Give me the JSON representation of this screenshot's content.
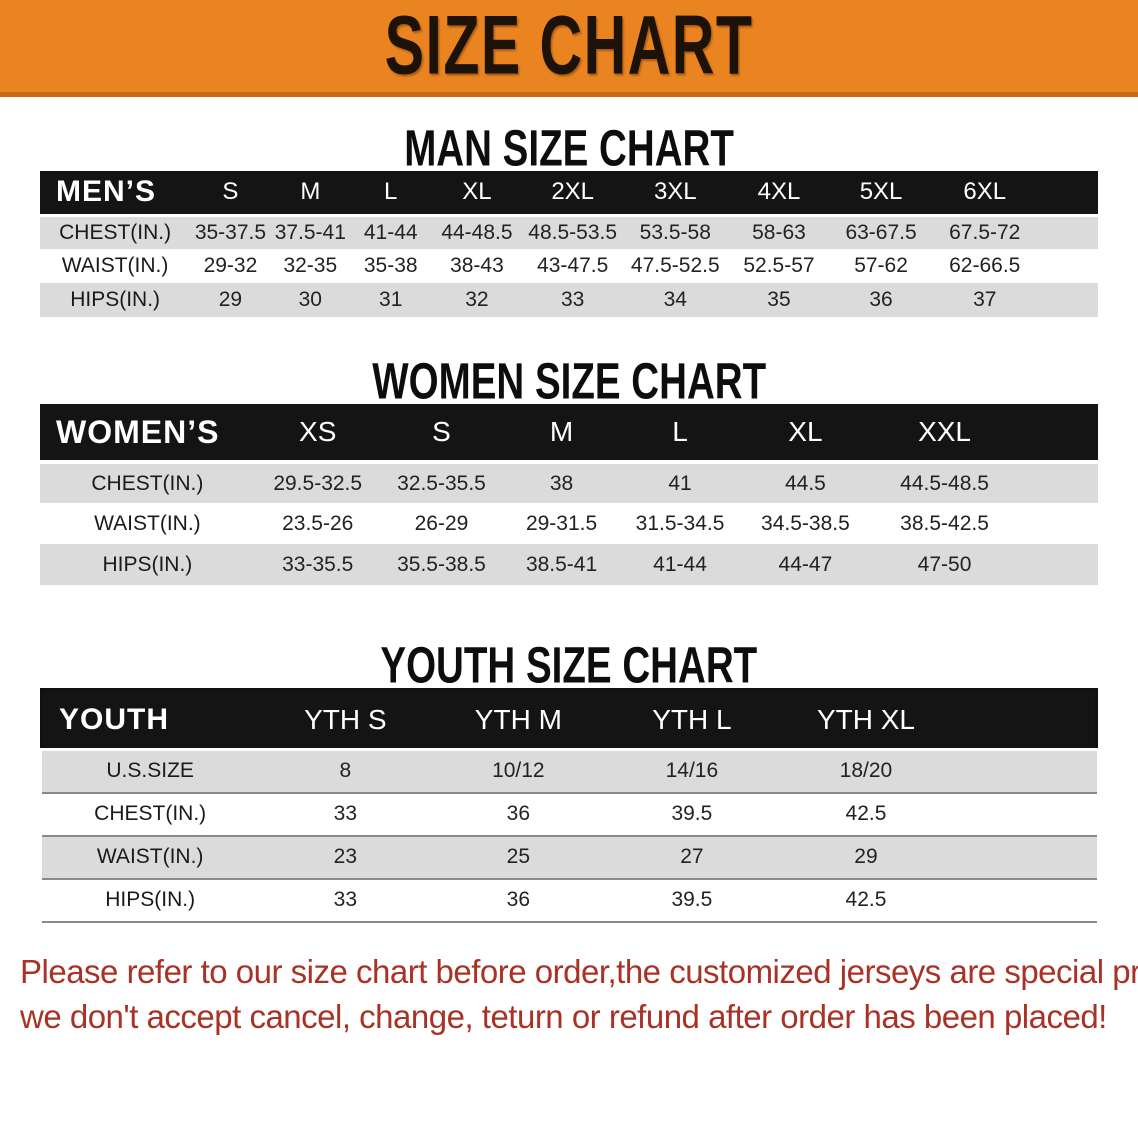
{
  "banner": {
    "title": "SIZE CHART",
    "bg_color": "#EA8420",
    "bg_edge_color": "#C96A10",
    "text_color": "#1c1208"
  },
  "colors": {
    "header_bar": "#141414",
    "header_text": "#ffffff",
    "stripe_gray": "#DBDBDB",
    "row_white": "#ffffff",
    "cell_text": "#222222",
    "disclaimer_red": "#A93226"
  },
  "sections": {
    "men": {
      "title": "MAN SIZE CHART",
      "table": {
        "corner": "MEN’S",
        "sizes": [
          "S",
          "M",
          "L",
          "XL",
          "2XL",
          "3XL",
          "4XL",
          "5XL",
          "6XL"
        ],
        "rows": [
          {
            "label": "CHEST(IN.)",
            "values": [
              "35-37.5",
              "37.5-41",
              "41-44",
              "44-48.5",
              "48.5-53.5",
              "53.5-58",
              "58-63",
              "63-67.5",
              "67.5-72"
            ]
          },
          {
            "label": "WAIST(IN.)",
            "values": [
              "29-32",
              "32-35",
              "35-38",
              "38-43",
              "43-47.5",
              "47.5-52.5",
              "52.5-57",
              "57-62",
              "62-66.5"
            ]
          },
          {
            "label": "HIPS(IN.)",
            "values": [
              "29",
              "30",
              "31",
              "32",
              "33",
              "34",
              "35",
              "36",
              "37"
            ]
          }
        ]
      }
    },
    "women": {
      "title": "WOMEN SIZE CHART",
      "table": {
        "corner": "WOMEN’S",
        "sizes": [
          "XS",
          "S",
          "M",
          "L",
          "XL",
          "XXL"
        ],
        "rows": [
          {
            "label": "CHEST(IN.)",
            "values": [
              "29.5-32.5",
              "32.5-35.5",
              "38",
              "41",
              "44.5",
              "44.5-48.5"
            ]
          },
          {
            "label": "WAIST(IN.)",
            "values": [
              "23.5-26",
              "26-29",
              "29-31.5",
              "31.5-34.5",
              "34.5-38.5",
              "38.5-42.5"
            ]
          },
          {
            "label": "HIPS(IN.)",
            "values": [
              "33-35.5",
              "35.5-38.5",
              "38.5-41",
              "41-44",
              "44-47",
              "47-50"
            ]
          }
        ]
      }
    },
    "youth": {
      "title": "YOUTH SIZE CHART",
      "table": {
        "corner": "YOUTH",
        "sizes": [
          "YTH S",
          "YTH M",
          "YTH L",
          "YTH XL"
        ],
        "rows": [
          {
            "label": "U.S.SIZE",
            "values": [
              "8",
              "10/12",
              "14/16",
              "18/20"
            ]
          },
          {
            "label": "CHEST(IN.)",
            "values": [
              "33",
              "36",
              "39.5",
              "42.5"
            ]
          },
          {
            "label": "WAIST(IN.)",
            "values": [
              "23",
              "25",
              "27",
              "29"
            ]
          },
          {
            "label": "HIPS(IN.)",
            "values": [
              "33",
              "36",
              "39.5",
              "42.5"
            ]
          }
        ]
      }
    }
  },
  "disclaimer": {
    "lines": [
      "Please refer to our size chart before order,the customized jerseys are special products,",
      "we don't accept cancel, change, teturn or refund after order has been placed!"
    ]
  }
}
